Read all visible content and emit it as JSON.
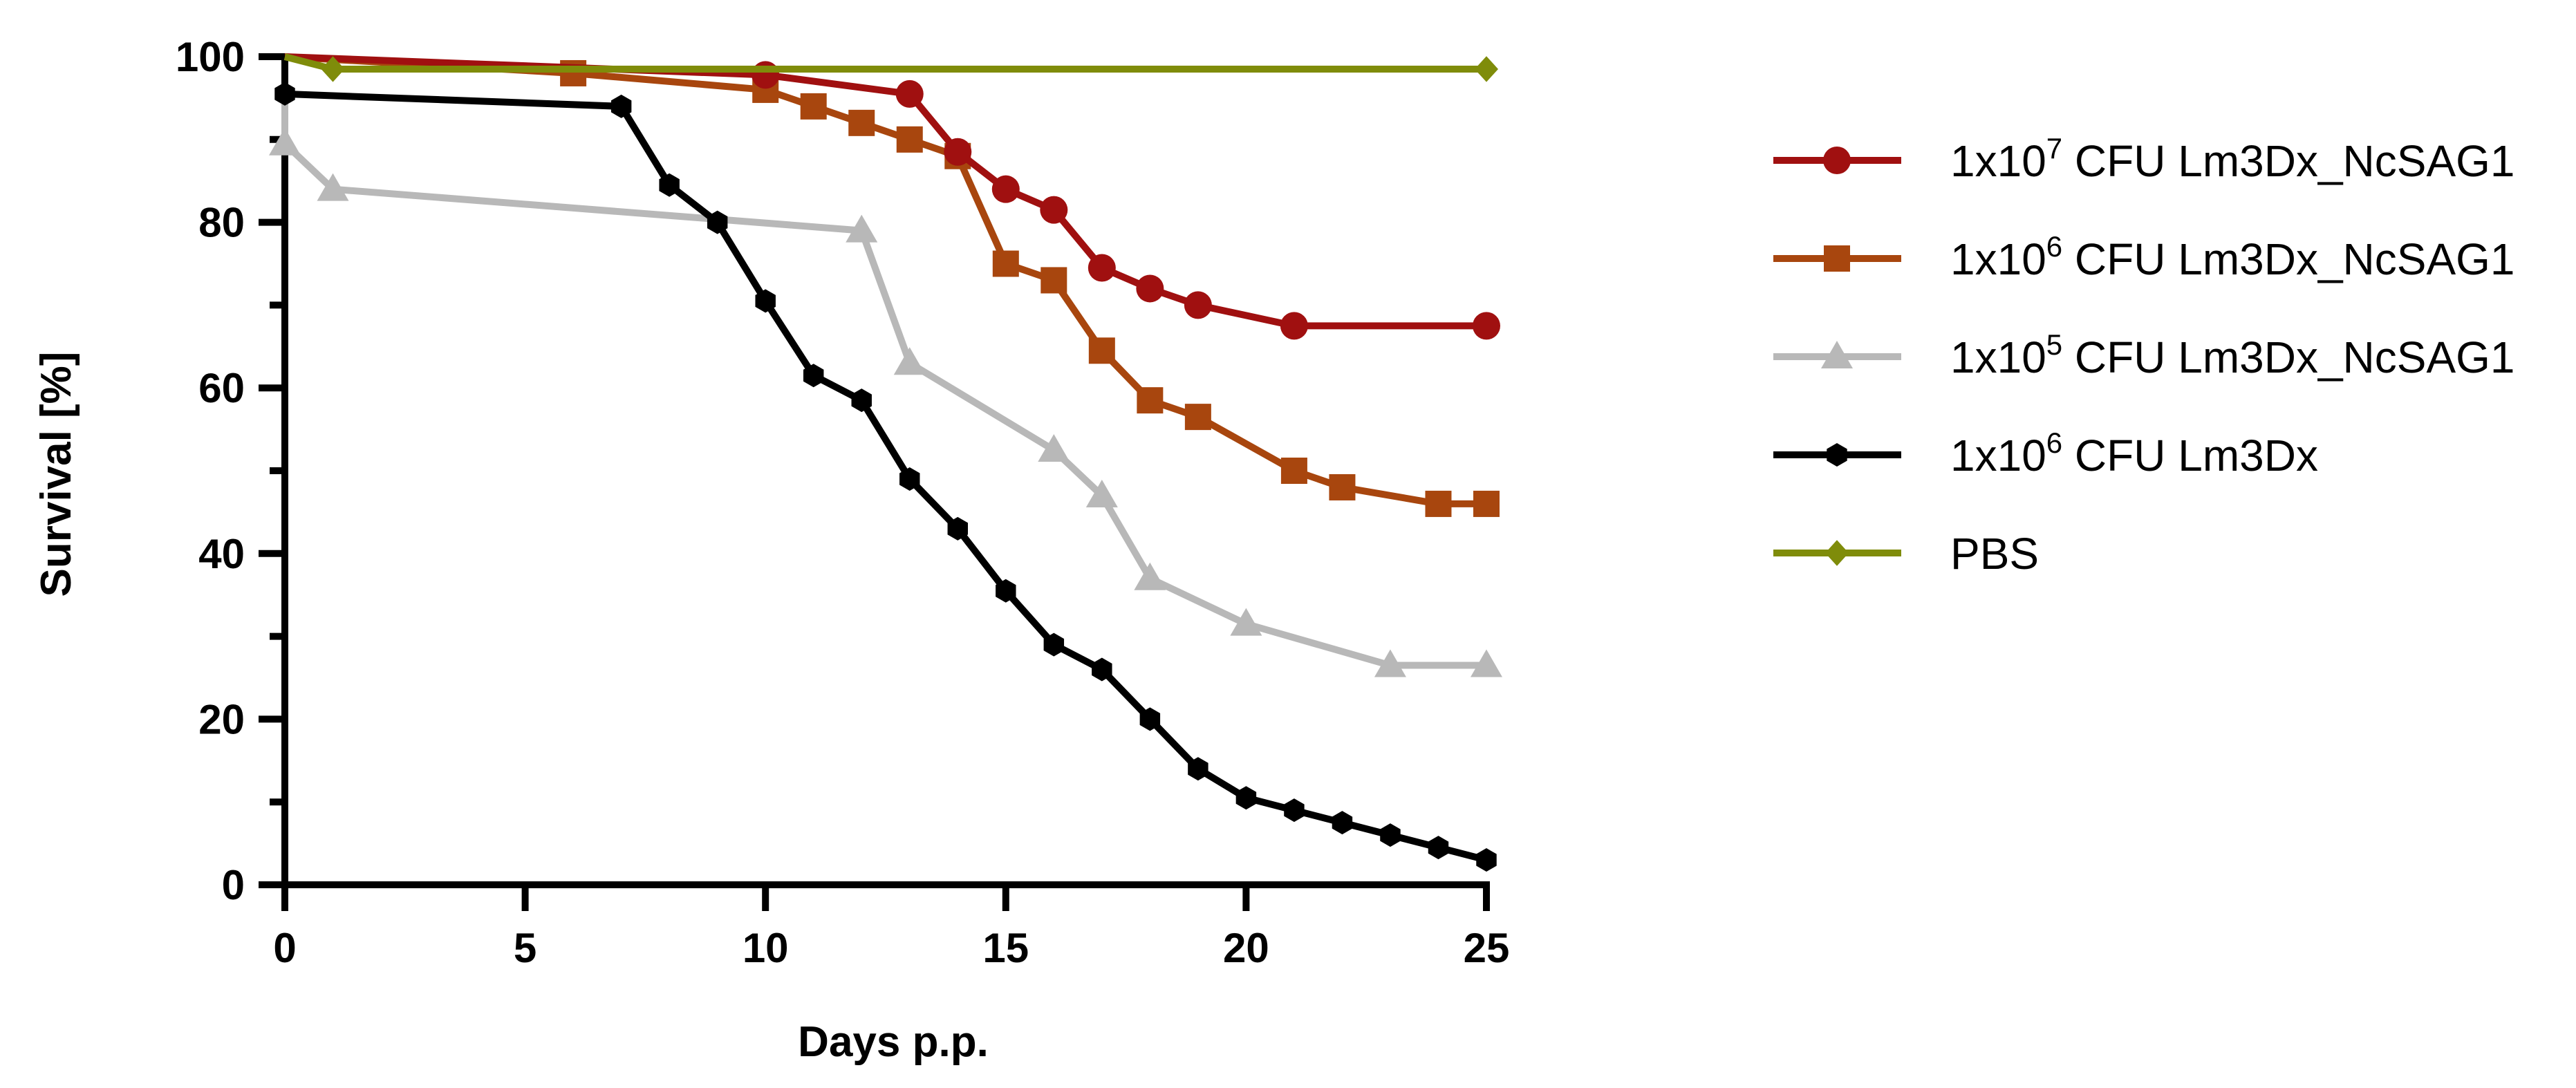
{
  "chart_data": {
    "type": "line",
    "title": "",
    "xlabel": "Days p.p.",
    "ylabel": "Survival [%]",
    "xlim": [
      0,
      25
    ],
    "ylim": [
      0,
      100
    ],
    "x_ticks": [
      0,
      5,
      10,
      15,
      20,
      25
    ],
    "y_ticks": [
      0,
      20,
      40,
      60,
      80,
      100
    ],
    "x_tick_labels": [
      "0",
      "5",
      "10",
      "15",
      "20",
      "25"
    ],
    "y_tick_labels": [
      "0",
      "20",
      "40",
      "60",
      "80",
      "100"
    ],
    "grid": false,
    "legend_position": "right",
    "series": [
      {
        "name": "1x10^7 CFU Lm3Dx_NcSAG1",
        "legend_prefix": "1x10",
        "legend_exp": "7",
        "legend_suffix": " CFU Lm3Dx_NcSAG1",
        "color": "#A01010",
        "marker": "circle",
        "points": [
          [
            0,
            100
          ],
          [
            10,
            97.8
          ],
          [
            13,
            95.5
          ],
          [
            14,
            88.5
          ],
          [
            15,
            84
          ],
          [
            16,
            81.5
          ],
          [
            17,
            74.5
          ],
          [
            18,
            72
          ],
          [
            19,
            70
          ],
          [
            21,
            67.5
          ],
          [
            25,
            67.5
          ]
        ]
      },
      {
        "name": "1x10^6 CFU Lm3Dx_NcSAG1",
        "legend_prefix": "1x10",
        "legend_exp": "6",
        "legend_suffix": " CFU Lm3Dx_NcSAG1",
        "color": "#A8460E",
        "marker": "square",
        "points": [
          [
            0,
            100
          ],
          [
            6,
            98
          ],
          [
            10,
            96
          ],
          [
            11,
            94
          ],
          [
            12,
            92
          ],
          [
            13,
            90
          ],
          [
            14,
            88
          ],
          [
            15,
            75
          ],
          [
            16,
            73
          ],
          [
            17,
            64.5
          ],
          [
            18,
            58.5
          ],
          [
            19,
            56.5
          ],
          [
            21,
            50
          ],
          [
            22,
            48
          ],
          [
            24,
            46
          ],
          [
            25,
            46
          ]
        ]
      },
      {
        "name": "1x10^5 CFU Lm3Dx_NcSAG1",
        "legend_prefix": "1x10",
        "legend_exp": "5",
        "legend_suffix": " CFU Lm3Dx_NcSAG1",
        "color": "#B8B8B8",
        "marker": "triangle",
        "points": [
          [
            0,
            100
          ],
          [
            0,
            89.5
          ],
          [
            1,
            84
          ],
          [
            12,
            79
          ],
          [
            13,
            63
          ],
          [
            16,
            52.5
          ],
          [
            17,
            47
          ],
          [
            18,
            37
          ],
          [
            20,
            31.5
          ],
          [
            23,
            26.5
          ],
          [
            25,
            26.5
          ]
        ]
      },
      {
        "name": "1x10^6 CFU Lm3Dx",
        "legend_prefix": "1x10",
        "legend_exp": "6",
        "legend_suffix": " CFU Lm3Dx",
        "color": "#000000",
        "marker": "hexagon",
        "points": [
          [
            0,
            100
          ],
          [
            0,
            95.5
          ],
          [
            7,
            94
          ],
          [
            8,
            84.5
          ],
          [
            9,
            80
          ],
          [
            10,
            70.5
          ],
          [
            11,
            61.5
          ],
          [
            12,
            58.5
          ],
          [
            13,
            49
          ],
          [
            14,
            43
          ],
          [
            15,
            35.5
          ],
          [
            16,
            29
          ],
          [
            17,
            26
          ],
          [
            18,
            20
          ],
          [
            19,
            14
          ],
          [
            20,
            10.5
          ],
          [
            21,
            9
          ],
          [
            22,
            7.5
          ],
          [
            23,
            6
          ],
          [
            24,
            4.5
          ],
          [
            25,
            3
          ]
        ]
      },
      {
        "name": "PBS",
        "legend_prefix": "PBS",
        "legend_exp": "",
        "legend_suffix": "",
        "color": "#7F8C0A",
        "marker": "diamond",
        "points": [
          [
            0,
            100
          ],
          [
            1,
            98.5
          ],
          [
            25,
            98.5
          ]
        ]
      }
    ]
  }
}
